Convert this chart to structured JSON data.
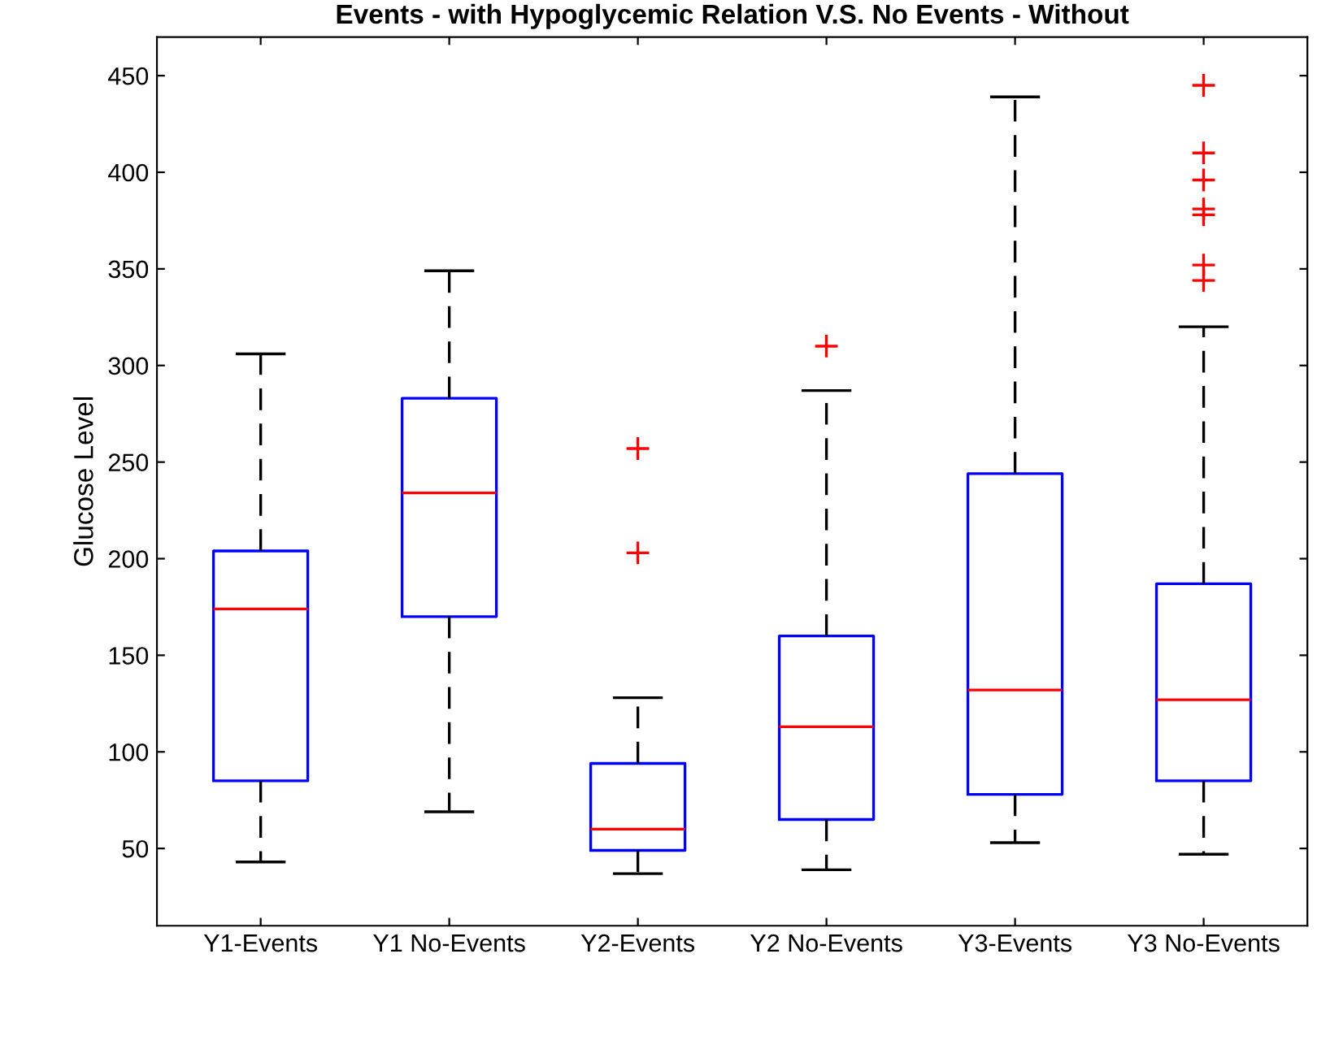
{
  "chart_data": {
    "type": "box",
    "title": "Events - with Hypoglycemic Relation V.S. No Events - Without",
    "ylabel": "Glucose Level",
    "categories": [
      "Y1-Events",
      "Y1 No-Events",
      "Y2-Events",
      "Y2 No-Events",
      "Y3-Events",
      "Y3 No-Events"
    ],
    "boxes": [
      {
        "low": 43,
        "q1": 85,
        "median": 174,
        "q3": 204,
        "high": 306
      },
      {
        "low": 69,
        "q1": 170,
        "median": 234,
        "q3": 283,
        "high": 349
      },
      {
        "low": 37,
        "q1": 49,
        "median": 60,
        "q3": 94,
        "high": 128,
        "outliers": [
          203,
          257
        ]
      },
      {
        "low": 39,
        "q1": 65,
        "median": 113,
        "q3": 160,
        "high": 287,
        "outliers": [
          310
        ]
      },
      {
        "low": 53,
        "q1": 78,
        "median": 132,
        "q3": 244,
        "high": 439
      },
      {
        "low": 47,
        "q1": 85,
        "median": 127,
        "q3": 187,
        "high": 320,
        "outliers": [
          344,
          352,
          378,
          381,
          396,
          410,
          445
        ]
      }
    ],
    "color": "#0000ff",
    "ylim": [
      10,
      470
    ],
    "yticks": [
      50,
      100,
      150,
      200,
      250,
      300,
      350,
      400,
      450
    ],
    "grid": false,
    "marker": "cross"
  }
}
